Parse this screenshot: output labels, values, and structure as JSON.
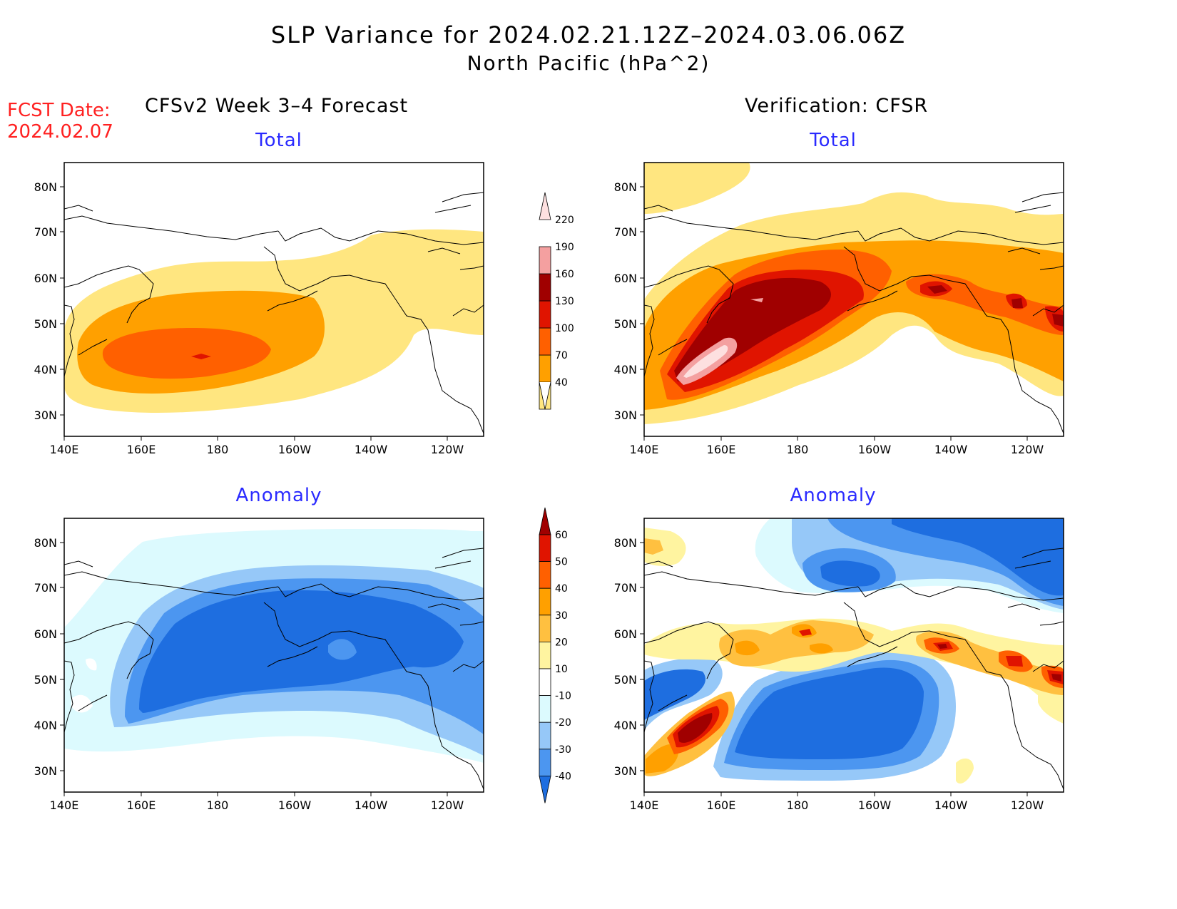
{
  "header": {
    "title": "SLP Variance for 2024.02.21.12Z–2024.03.06.06Z",
    "subtitle": "North Pacific (hPa^2)",
    "fcst_line1": "FCST Date:",
    "fcst_line2": "2024.02.07",
    "left_column": "CFSv2 Week 3–4 Forecast",
    "right_column": "Verification: CFSR"
  },
  "panels": {
    "fc_total": {
      "title": "Total"
    },
    "obs_total": {
      "title": "Total"
    },
    "fc_anom": {
      "title": "Anomaly"
    },
    "obs_anom": {
      "title": "Anomaly"
    }
  },
  "axes": {
    "lat_labels": [
      "80N",
      "70N",
      "60N",
      "50N",
      "40N",
      "30N"
    ],
    "lon_labels": [
      "140E",
      "160E",
      "180",
      "160W",
      "140W",
      "120W"
    ]
  },
  "total_scale": {
    "levels": [
      "40",
      "70",
      "100",
      "130",
      "160",
      "190",
      "220"
    ],
    "colors": [
      "#ffe680",
      "#ffa000",
      "#ff6000",
      "#e01400",
      "#a00000",
      "#f4a0a0",
      "#fde0e0"
    ]
  },
  "anomaly_scale": {
    "levels": [
      "-40",
      "-30",
      "-20",
      "-10",
      "10",
      "20",
      "30",
      "40",
      "50",
      "60"
    ],
    "colors": [
      "#1e6ee0",
      "#4c96f0",
      "#96c8f8",
      "#dcfafe",
      "#ffffff",
      "#fff4a0",
      "#ffc040",
      "#ffa000",
      "#ff6000",
      "#e01400",
      "#a00000"
    ]
  }
}
